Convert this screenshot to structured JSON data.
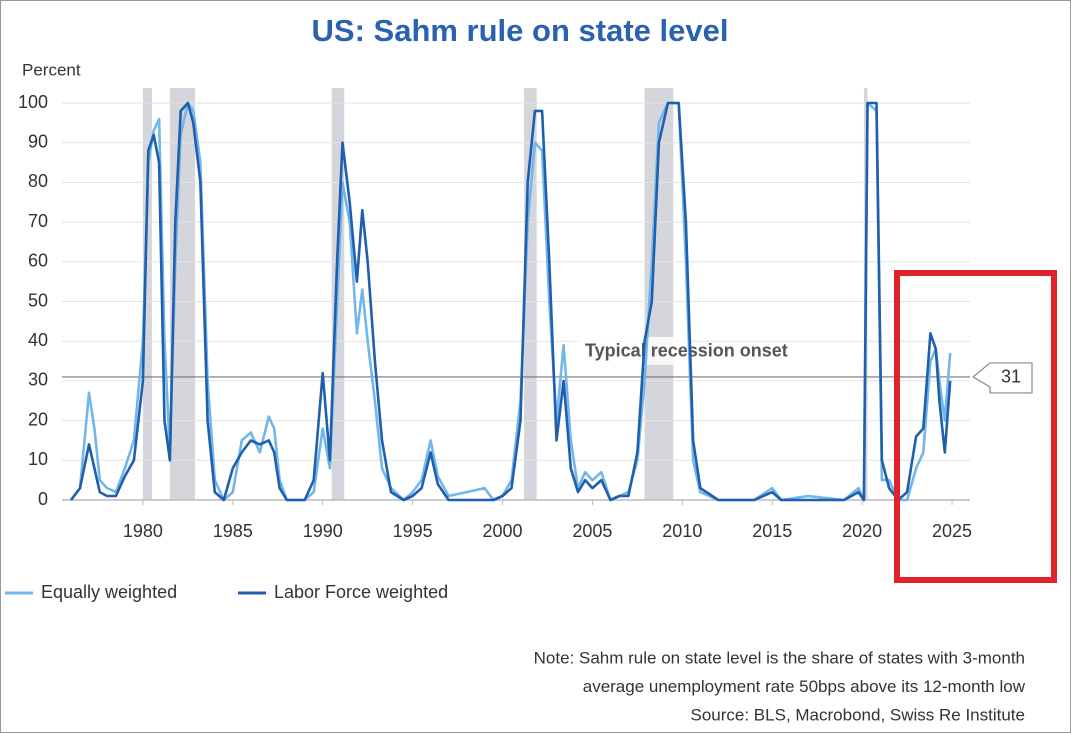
{
  "chart_data": {
    "type": "line",
    "title": "US: Sahm rule on state level",
    "y_label": "Percent",
    "xlim": [
      1975.5,
      2026
    ],
    "ylim": [
      0,
      100
    ],
    "xticks": [
      1980,
      1985,
      1990,
      1995,
      2000,
      2005,
      2010,
      2015,
      2020,
      2025
    ],
    "yticks": [
      0,
      10,
      20,
      30,
      40,
      50,
      60,
      70,
      80,
      90,
      100
    ],
    "grid": true,
    "recessions": [
      [
        1980,
        1980.5
      ],
      [
        1981.5,
        1982.9
      ],
      [
        1990.5,
        1991.2
      ],
      [
        2001.2,
        2001.9
      ],
      [
        2007.9,
        2009.5
      ],
      [
        2020.1,
        2020.3
      ]
    ],
    "recession_color": "#d4d6db",
    "reference_line": {
      "value": 31,
      "label": "Typical recession onset"
    },
    "x": [
      1976,
      1976.5,
      1977,
      1977.3,
      1977.6,
      1978,
      1978.5,
      1979,
      1979.5,
      1980,
      1980.3,
      1980.6,
      1980.9,
      1981.2,
      1981.5,
      1981.8,
      1982.1,
      1982.5,
      1982.8,
      1983.2,
      1983.6,
      1984,
      1984.5,
      1985,
      1985.5,
      1986,
      1986.5,
      1987,
      1987.3,
      1987.6,
      1988,
      1989,
      1989.5,
      1990,
      1990.4,
      1990.8,
      1991.1,
      1991.5,
      1991.9,
      1992.2,
      1992.5,
      1992.9,
      1993.3,
      1993.8,
      1994.5,
      1995,
      1995.5,
      1996,
      1996.4,
      1997,
      1998,
      1999,
      1999.5,
      2000,
      2000.5,
      2001,
      2001.4,
      2001.8,
      2002.2,
      2002.6,
      2003,
      2003.4,
      2003.8,
      2004.2,
      2004.6,
      2005,
      2005.5,
      2006,
      2006.5,
      2007,
      2007.5,
      2007.9,
      2008.3,
      2008.7,
      2009.2,
      2009.8,
      2010.2,
      2010.6,
      2011,
      2012,
      2014,
      2015,
      2015.5,
      2017,
      2019,
      2019.8,
      2020.1,
      2020.3,
      2020.8,
      2021.1,
      2021.5,
      2022,
      2022.5,
      2023,
      2023.4,
      2023.8,
      2024.1,
      2024.3,
      2024.6,
      2024.9
    ],
    "series": [
      {
        "name": "Equally weighted",
        "color": "#72b6ea",
        "values": [
          0,
          3,
          27,
          18,
          5,
          3,
          2,
          8,
          15,
          40,
          85,
          93,
          96,
          40,
          12,
          60,
          92,
          100,
          98,
          85,
          30,
          5,
          0,
          2,
          15,
          17,
          12,
          21,
          18,
          5,
          0,
          0,
          2,
          18,
          8,
          50,
          80,
          70,
          42,
          53,
          40,
          25,
          8,
          3,
          0,
          2,
          5,
          15,
          6,
          1,
          2,
          3,
          0,
          1,
          5,
          25,
          70,
          90,
          88,
          50,
          20,
          39,
          15,
          3,
          7,
          5,
          7,
          0,
          1,
          2,
          10,
          30,
          60,
          95,
          100,
          100,
          60,
          10,
          2,
          0,
          0,
          3,
          0,
          1,
          0,
          3,
          0,
          100,
          98,
          5,
          5,
          0,
          0,
          8,
          12,
          35,
          38,
          30,
          20,
          37
        ]
      },
      {
        "name": "Labor Force weighted",
        "color": "#1f5fae",
        "values": [
          0,
          3,
          14,
          8,
          2,
          1,
          1,
          6,
          10,
          30,
          88,
          92,
          85,
          20,
          10,
          70,
          98,
          100,
          95,
          80,
          20,
          2,
          0,
          8,
          12,
          15,
          14,
          15,
          12,
          3,
          0,
          0,
          5,
          32,
          10,
          60,
          90,
          75,
          55,
          73,
          60,
          35,
          15,
          2,
          0,
          1,
          3,
          12,
          4,
          0,
          0,
          0,
          0,
          1,
          3,
          20,
          80,
          98,
          98,
          60,
          15,
          30,
          8,
          2,
          5,
          3,
          5,
          0,
          1,
          1,
          12,
          40,
          50,
          90,
          100,
          100,
          70,
          15,
          3,
          0,
          0,
          2,
          0,
          0,
          0,
          2,
          0,
          100,
          100,
          10,
          3,
          0,
          2,
          16,
          18,
          42,
          38,
          25,
          12,
          30
        ]
      }
    ],
    "notes": [
      "Note: Sahm rule on state level is the share of states with 3-month",
      "average unemployment rate 50bps above its 12-month low",
      "Source: BLS, Macrobond, Swiss Re Institute"
    ]
  }
}
